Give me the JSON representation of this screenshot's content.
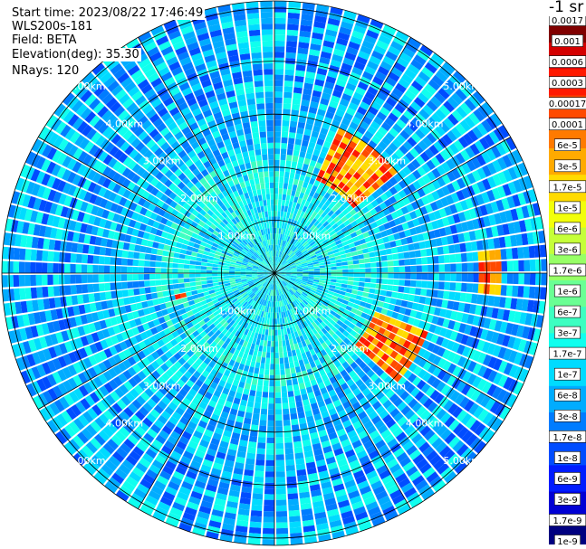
{
  "header": {
    "start_time": "Start time: 2023/08/22 17:46:49",
    "instrument": "WLS200s-181",
    "field": "Field: BETA",
    "elevation": "Elevation(deg): 35.30",
    "nrays": "NRays: 120"
  },
  "colorbar_title": "-1 sr",
  "chart_data": {
    "type": "heatmap",
    "projection": "polar-ppi",
    "field": "BETA",
    "elevation_deg": 35.3,
    "n_rays": 120,
    "range_rings_km": [
      1,
      2,
      3,
      4,
      5
    ],
    "ring_labels": [
      "1.00km",
      "2.00km",
      "3.00km",
      "4.00km",
      "5.00km"
    ],
    "spokes_deg": [
      0,
      30,
      60,
      90,
      120,
      150,
      180,
      210,
      240,
      270,
      300,
      330
    ],
    "colorbar_ticks": [
      "0.0017",
      "0.001",
      "0.0006",
      "0.0003",
      "0.00017",
      "0.0001",
      "6e-5",
      "3e-5",
      "1.7e-5",
      "1e-5",
      "6e-6",
      "3e-6",
      "1.7e-6",
      "1e-6",
      "6e-7",
      "3e-7",
      "1.7e-7",
      "1e-7",
      "6e-8",
      "3e-8",
      "1.7e-8",
      "1e-8",
      "6e-9",
      "3e-9",
      "1.7e-9",
      "1e-9"
    ],
    "colorbar_colors": [
      "#800000",
      "#d40000",
      "#ff1a00",
      "#ff4a00",
      "#ff7a00",
      "#ffaa00",
      "#ffdb00",
      "#f2ff0b",
      "#c5ff39",
      "#97ff66",
      "#6aff94",
      "#3dffc1",
      "#10ffee",
      "#00dbff",
      "#00acff",
      "#007cff",
      "#004cff",
      "#001cff",
      "#0000d4",
      "#000080"
    ],
    "background_beta": "1e-7 to 1e-8",
    "aerosol_features": [
      {
        "az_deg": [
          25,
          48
        ],
        "range_km": [
          2.0,
          2.9
        ],
        "beta_range": [
          "3e-5",
          "0.0006"
        ]
      },
      {
        "az_deg": [
          84,
          92
        ],
        "range_km": [
          4.0,
          4.2
        ],
        "beta_range": [
          "3e-5",
          "0.0003"
        ]
      },
      {
        "az_deg": [
          110,
          128
        ],
        "range_km": [
          2.2,
          3.0
        ],
        "beta_range": [
          "3e-5",
          "0.0006"
        ]
      },
      {
        "az_deg": [
          254,
          256
        ],
        "range_km": [
          1.8,
          1.8
        ],
        "beta_range": [
          "6e-5",
          "0.0003"
        ]
      }
    ]
  }
}
